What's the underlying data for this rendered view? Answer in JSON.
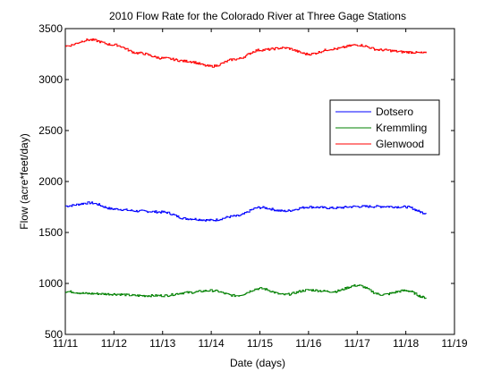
{
  "chart_data": {
    "type": "line",
    "title": "2010 Flow Rate for the Colorado River at Three Gage Stations",
    "xlabel": "Date (days)",
    "ylabel": "Flow (acre*feet/day)",
    "xlim": [
      "11/11",
      "11/19"
    ],
    "ylim": [
      500,
      3500
    ],
    "xticks": [
      "11/11",
      "11/12",
      "11/13",
      "11/14",
      "11/15",
      "11/16",
      "11/17",
      "11/18",
      "11/19"
    ],
    "yticks": [
      "500",
      "1000",
      "1500",
      "2000",
      "2500",
      "3000",
      "3500"
    ],
    "grid": false,
    "legend_position": "right",
    "x": [
      "11/11 00:00",
      "11/11 12:00",
      "11/12 00:00",
      "11/12 12:00",
      "11/13 00:00",
      "11/13 12:00",
      "11/14 00:00",
      "11/14 12:00",
      "11/15 00:00",
      "11/15 12:00",
      "11/16 00:00",
      "11/16 12:00",
      "11/17 00:00",
      "11/17 12:00",
      "11/18 00:00",
      "11/18 10:00"
    ],
    "series": [
      {
        "name": "Dotsero",
        "color": "#0000ff",
        "values": [
          1760,
          1790,
          1730,
          1710,
          1700,
          1635,
          1620,
          1660,
          1745,
          1710,
          1750,
          1740,
          1755,
          1755,
          1750,
          1690
        ]
      },
      {
        "name": "Kremmling",
        "color": "#008000",
        "values": [
          920,
          900,
          895,
          880,
          880,
          910,
          930,
          880,
          950,
          890,
          935,
          920,
          980,
          890,
          930,
          860
        ]
      },
      {
        "name": "Glenwood",
        "color": "#ff0000",
        "values": [
          3330,
          3390,
          3340,
          3260,
          3210,
          3180,
          3130,
          3200,
          3290,
          3310,
          3250,
          3300,
          3340,
          3290,
          3270,
          3260
        ]
      }
    ]
  }
}
